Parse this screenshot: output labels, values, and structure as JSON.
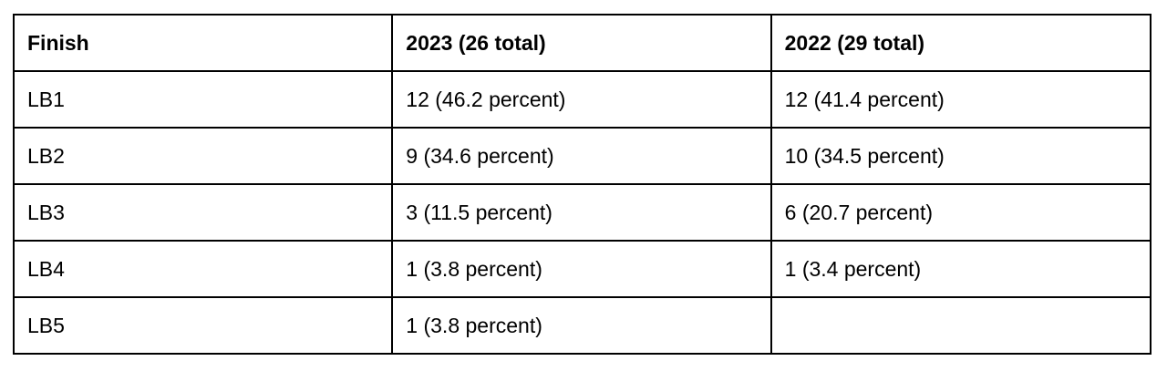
{
  "table": {
    "header": [
      "Finish",
      "2023 (26 total)",
      "2022 (29 total)"
    ],
    "rows": [
      [
        "LB1",
        "12 (46.2 percent)",
        "12 (41.4 percent)"
      ],
      [
        "LB2",
        "9 (34.6 percent)",
        "10 (34.5 percent)"
      ],
      [
        "LB3",
        "3 (11.5 percent)",
        "6 (20.7 percent)"
      ],
      [
        "LB4",
        "1 (3.8 percent)",
        "1 (3.4 percent)"
      ],
      [
        "LB5",
        "1 (3.8 percent)"
      ]
    ]
  }
}
